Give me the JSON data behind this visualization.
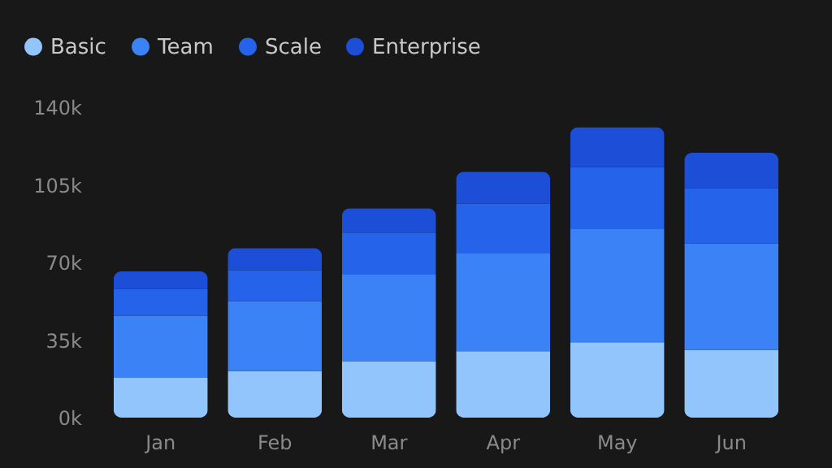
{
  "chart_data": {
    "type": "bar",
    "stacked": true,
    "legend": "top left",
    "grid": false,
    "categories": [
      "Jan",
      "Feb",
      "Mar",
      "Apr",
      "May",
      "Jun"
    ],
    "series": [
      {
        "name": "Basic",
        "color": "#93c5fd",
        "values": [
          18000,
          21000,
          25500,
          30000,
          34000,
          30500
        ]
      },
      {
        "name": "Team",
        "color": "#3b82f6",
        "values": [
          28000,
          31500,
          39000,
          44000,
          51000,
          48000
        ]
      },
      {
        "name": "Scale",
        "color": "#2563eb",
        "values": [
          12000,
          14000,
          19000,
          22500,
          28000,
          25000
        ]
      },
      {
        "name": "Enterprise",
        "color": "#1d4ed8",
        "values": [
          8000,
          10000,
          11000,
          14500,
          18000,
          16000
        ]
      }
    ],
    "ylim": [
      0,
      140000
    ],
    "yticks": [
      {
        "value": 0,
        "label": "0k"
      },
      {
        "value": 35000,
        "label": "35k"
      },
      {
        "value": 70000,
        "label": "70k"
      },
      {
        "value": 105000,
        "label": "105k"
      },
      {
        "value": 140000,
        "label": "140k"
      }
    ]
  }
}
